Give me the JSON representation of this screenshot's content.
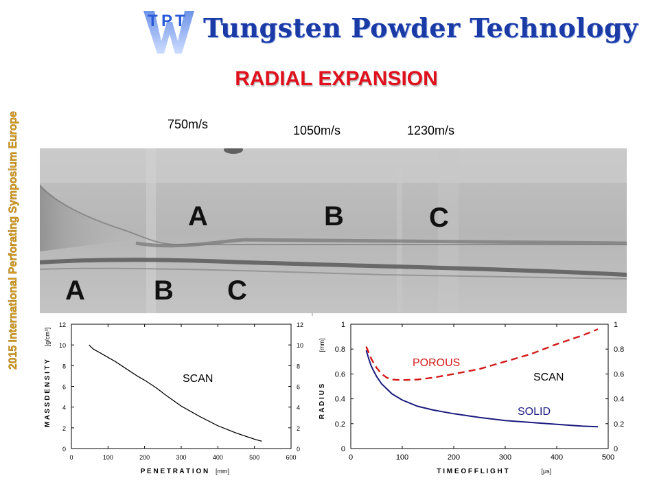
{
  "header": {
    "logo_text": "Tungsten Powder Technology",
    "logo_mark": [
      "T",
      "P",
      "T",
      "W"
    ],
    "title": "RADIAL EXPANSION",
    "side_caption": "2015 International Perforating Symposium Europe"
  },
  "photo": {
    "speeds": [
      "750m/s",
      "1050m/s",
      "1230m/s"
    ],
    "upper_labels": [
      "A",
      "B",
      "C"
    ],
    "lower_labels": [
      "A",
      "B",
      "C"
    ]
  },
  "colors": {
    "title": "#e0101c",
    "logo": "#1a3aa6",
    "solid": "#1a1a80",
    "porous": "#d41818"
  },
  "chart_data": [
    {
      "type": "line",
      "xlabel": "PENETRATION",
      "xunit": "[mm]",
      "ylabel": "MASS DENSITY",
      "yunit": "[g/cm³]",
      "xlim": [
        0,
        600
      ],
      "ylim": [
        0,
        12
      ],
      "xticks": [
        0,
        100,
        200,
        300,
        400,
        500,
        600
      ],
      "yticks": [
        0,
        2,
        4,
        6,
        8,
        10,
        12
      ],
      "annotation": "SCAN",
      "series": [
        {
          "x": [
            48,
            60,
            80,
            100,
            120,
            150,
            180,
            200,
            230,
            260,
            300,
            350,
            400,
            450,
            500,
            520
          ],
          "y": [
            10.0,
            9.6,
            9.2,
            8.8,
            8.4,
            7.7,
            7.0,
            6.6,
            5.9,
            5.1,
            4.1,
            3.1,
            2.2,
            1.5,
            0.9,
            0.7
          ]
        }
      ]
    },
    {
      "type": "line",
      "xlabel": "TIME OF FLIGHT",
      "xunit": "[μs]",
      "ylabel": "RADIUS",
      "yunit": "[mm]",
      "xlim": [
        0,
        500
      ],
      "ylim": [
        0,
        1
      ],
      "xticks": [
        0,
        100,
        200,
        300,
        400,
        500
      ],
      "yticks": [
        0,
        0.2,
        0.4,
        0.6,
        0.8,
        1
      ],
      "annotation": "SCAN",
      "series": [
        {
          "name": "SOLID",
          "style": "solid",
          "x": [
            30,
            35,
            40,
            50,
            60,
            80,
            100,
            130,
            160,
            200,
            250,
            300,
            350,
            400,
            450,
            480
          ],
          "y": [
            0.79,
            0.72,
            0.66,
            0.58,
            0.52,
            0.44,
            0.39,
            0.34,
            0.31,
            0.28,
            0.25,
            0.225,
            0.21,
            0.195,
            0.18,
            0.175
          ]
        },
        {
          "name": "POROUS",
          "style": "dashed",
          "x": [
            30,
            40,
            50,
            60,
            70,
            80,
            100,
            130,
            160,
            200,
            250,
            300,
            350,
            400,
            450,
            480
          ],
          "y": [
            0.82,
            0.72,
            0.65,
            0.6,
            0.57,
            0.555,
            0.55,
            0.555,
            0.57,
            0.6,
            0.64,
            0.7,
            0.76,
            0.84,
            0.91,
            0.96
          ]
        }
      ]
    }
  ]
}
